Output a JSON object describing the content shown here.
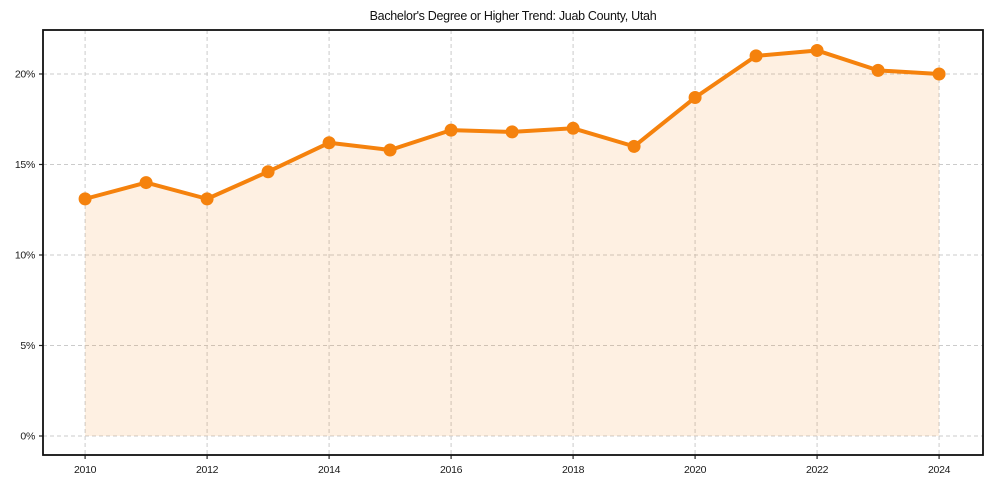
{
  "chart_data": {
    "type": "line",
    "area_fill": true,
    "title": "Bachelor's Degree or Higher Trend: Juab County, Utah",
    "x": [
      2010,
      2011,
      2012,
      2013,
      2014,
      2015,
      2016,
      2017,
      2018,
      2019,
      2020,
      2021,
      2022,
      2023,
      2024
    ],
    "values": [
      13.1,
      14.0,
      13.1,
      14.6,
      16.2,
      15.8,
      16.9,
      16.8,
      17.0,
      16.0,
      18.7,
      21.0,
      21.3,
      20.2,
      20.0
    ],
    "xlabel": "",
    "ylabel": "",
    "xticks": [
      2010,
      2012,
      2014,
      2016,
      2018,
      2020,
      2022,
      2024
    ],
    "xtick_labels": [
      "2010",
      "2012",
      "2014",
      "2016",
      "2018",
      "2020",
      "2022",
      "2024"
    ],
    "yticks": [
      0,
      5,
      10,
      15,
      20
    ],
    "ytick_labels": [
      "0%",
      "5%",
      "10%",
      "15%",
      "20%"
    ],
    "xlim": [
      2009.31,
      2024.72
    ],
    "ylim": [
      -1.05,
      22.43
    ],
    "grid": true,
    "legend": "none",
    "marker": "circle",
    "colors": {
      "line": "#F5820D",
      "marker": "#F5820D",
      "area": "#F5820D",
      "area_opacity": "0.12",
      "grid": "#CBCBCB",
      "frame": "#111111",
      "tick": "#262626",
      "text": "#1a1a1a",
      "background": "#FFFFFF"
    }
  }
}
